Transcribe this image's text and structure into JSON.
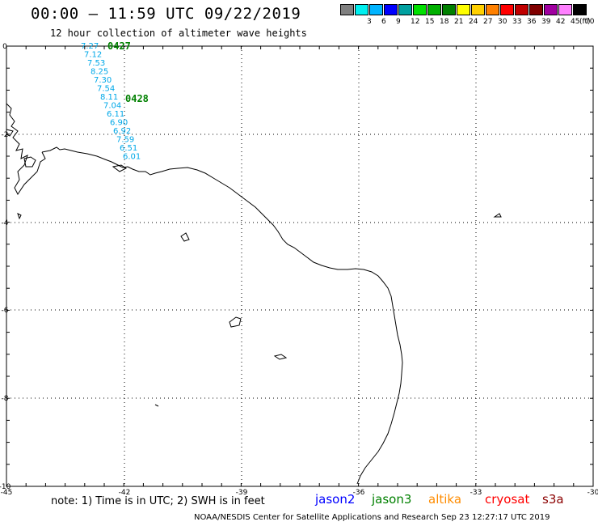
{
  "header": {
    "title": "00:00 – 11:59 UTC 09/22/2019",
    "subtitle": "12 hour collection of altimeter wave heights"
  },
  "legend": {
    "items": [
      {
        "label": "",
        "color": "#808080"
      },
      {
        "label": "3",
        "color": "#00f0f0"
      },
      {
        "label": "6",
        "color": "#00b4ff"
      },
      {
        "label": "9",
        "color": "#0000ff"
      },
      {
        "label": "12",
        "color": "#00a0a0"
      },
      {
        "label": "15",
        "color": "#00e000"
      },
      {
        "label": "18",
        "color": "#00b000"
      },
      {
        "label": "21",
        "color": "#008000"
      },
      {
        "label": "24",
        "color": "#ffff00"
      },
      {
        "label": "27",
        "color": "#ffd000"
      },
      {
        "label": "30",
        "color": "#ff8000"
      },
      {
        "label": "33",
        "color": "#ff0000"
      },
      {
        "label": "36",
        "color": "#c00000"
      },
      {
        "label": "39",
        "color": "#800000"
      },
      {
        "label": "42",
        "color": "#a000a0"
      },
      {
        "label": "45",
        "color": "#ff80ff"
      },
      {
        "label": "70",
        "color": "#000000"
      }
    ],
    "unit": "(ft)"
  },
  "map": {
    "lon_ticks": [
      "-45",
      "-42",
      "-39",
      "-36",
      "-33",
      "-30"
    ],
    "lat_ticks": [
      "0",
      "-2",
      "-4",
      "-6",
      "-8",
      "-10"
    ],
    "track": {
      "values": [
        "7.27",
        "7.12",
        "7.53",
        "8.25",
        "7.30",
        "7.54",
        "8.11",
        "7.04",
        "6.11",
        "6.90",
        "6.92",
        "7.59",
        "6.51",
        "6.01"
      ],
      "color": "#00a8e8",
      "timestamps": [
        "0427",
        "0428"
      ],
      "timestamp_color": "#008000"
    }
  },
  "footer": {
    "note": "note: 1) Time is in UTC; 2) SWH is in feet",
    "missions": [
      {
        "name": "jason2",
        "color": "#0000ff"
      },
      {
        "name": "jason3",
        "color": "#008000"
      },
      {
        "name": "altika",
        "color": "#ff8c00"
      },
      {
        "name": "cryosat",
        "color": "#ff0000"
      },
      {
        "name": "s3a",
        "color": "#8b0000"
      }
    ],
    "credit": "NOAA/NESDIS Center for Satellite Applications and Research    Sep 23 12:27:17 UTC 2019"
  }
}
